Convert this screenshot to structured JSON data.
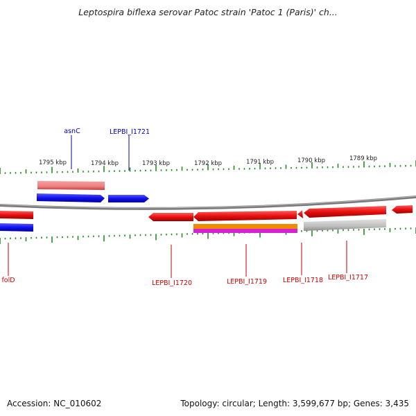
{
  "title": "Leptospira biflexa serovar Patoc strain 'Patoc 1 (Paris)' ch...",
  "footer": {
    "accession": "Accession: NC_010602",
    "stats": "Topology: circular; Length: 3,599,677 bp; Genes: 3,435"
  },
  "ruler": {
    "ticks": [
      "1795 kbp",
      "1794 kbp",
      "1793 kbp",
      "1792 kbp",
      "1791 kbp",
      "1790 kbp",
      "1789 kbp"
    ]
  },
  "gene_labels": {
    "asnC": "asnC",
    "l1721": "LEPBI_I1721",
    "folD": "folD",
    "l1720": "LEPBI_I1720",
    "l1719": "LEPBI_I1719",
    "l1718": "LEPBI_I1718",
    "l1717": "LEPBI_I1717"
  },
  "colors": {
    "forward_cds": "#1010ee",
    "reverse_cds": "#e81010",
    "forward_rna": "#f08888",
    "reverse_rna": "#bdbdbd",
    "backbone": "#7a7a7a",
    "ticks": "#1f8c1f",
    "label_forward": "#0000aa",
    "label_reverse": "#cc0000"
  }
}
